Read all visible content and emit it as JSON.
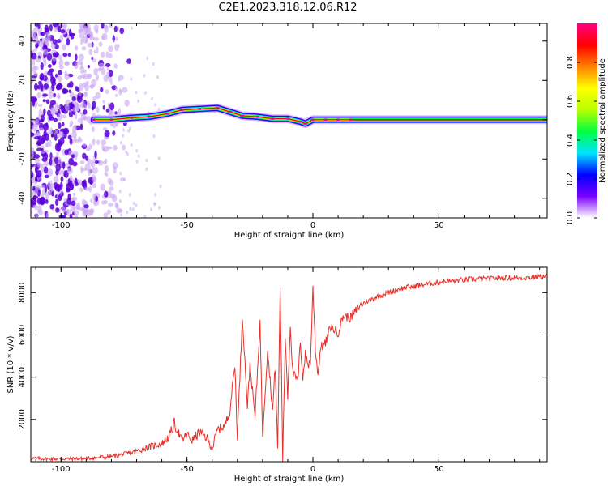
{
  "title": "C2E1.2023.318.12.06.R12",
  "colors": {
    "line": "#e8302a",
    "dot_dark": "#5a00d8",
    "dot_light": "#c9a6f2"
  },
  "chart_data": [
    {
      "type": "heatmap",
      "xlabel": "Height of straight line (km)",
      "ylabel": "Frequency (Hz)",
      "xlim": [
        -112,
        93
      ],
      "ylim": [
        -50,
        49
      ],
      "x_ticks": [
        -100,
        -50,
        0,
        50
      ],
      "y_ticks": [
        -40,
        -20,
        0,
        20,
        40
      ],
      "colorbar": {
        "label": "Normalized spectral amplitude",
        "range": [
          0.0,
          1.0
        ],
        "ticks": [
          "0.0",
          "0.2",
          "0.4",
          "0.6",
          "0.8"
        ],
        "colormap": [
          "#ffffff",
          "#7a00ff",
          "#0000ff",
          "#00e5ff",
          "#00ff40",
          "#b8ff00",
          "#ffff00",
          "#ff8000",
          "#ff0000",
          "#ff0080"
        ]
      },
      "ridge": {
        "x": [
          -87,
          -80,
          -72,
          -65,
          -58,
          -52,
          -45,
          -38,
          -33,
          -28,
          -22,
          -16,
          -10,
          -5,
          -3,
          0,
          5,
          10,
          15,
          93
        ],
        "freq": [
          0,
          0,
          1,
          1.5,
          3,
          5,
          5.5,
          6,
          4,
          2,
          1.5,
          0.5,
          0.5,
          -1,
          -2,
          0,
          0,
          0,
          0,
          0
        ]
      }
    },
    {
      "type": "line",
      "xlabel": "Height of straight line (km)",
      "ylabel": "SNR (10 * v/v)",
      "xlim": [
        -112,
        93
      ],
      "ylim": [
        0,
        9200
      ],
      "x_ticks": [
        -100,
        -50,
        0,
        50
      ],
      "y_ticks": [
        2000,
        4000,
        6000,
        8000
      ],
      "series": [
        {
          "x": [
            -112,
            -100,
            -90,
            -80,
            -75,
            -70,
            -65,
            -60,
            -57,
            -55,
            -52,
            -50,
            -48,
            -45,
            -42,
            -40,
            -38,
            -35,
            -33,
            -31,
            -30,
            -28,
            -26,
            -25,
            -23,
            -21,
            -20,
            -18,
            -16,
            -15,
            -14,
            -13,
            -12,
            -11,
            -10,
            -9,
            -8,
            -6,
            -5,
            -4,
            -3,
            -2,
            -1,
            0,
            1,
            2,
            3,
            5,
            7,
            10,
            12,
            15,
            18,
            20,
            25,
            30,
            35,
            40,
            45,
            50,
            55,
            60,
            65,
            70,
            75,
            80,
            85,
            90,
            93
          ],
          "y": [
            150,
            130,
            150,
            250,
            350,
            500,
            700,
            850,
            1200,
            1800,
            1000,
            1300,
            1000,
            1400,
            1100,
            600,
            1500,
            1700,
            2400,
            4600,
            1200,
            6900,
            2600,
            4600,
            2100,
            6600,
            1300,
            5300,
            2400,
            4500,
            600,
            8300,
            100,
            5900,
            3100,
            6500,
            4200,
            3800,
            5600,
            4000,
            5100,
            4600,
            4700,
            8200,
            5300,
            4100,
            5400,
            5600,
            6400,
            6100,
            6900,
            6800,
            7300,
            7500,
            7800,
            8000,
            8200,
            8300,
            8400,
            8500,
            8550,
            8600,
            8650,
            8650,
            8700,
            8700,
            8700,
            8750,
            8800
          ]
        }
      ]
    }
  ]
}
